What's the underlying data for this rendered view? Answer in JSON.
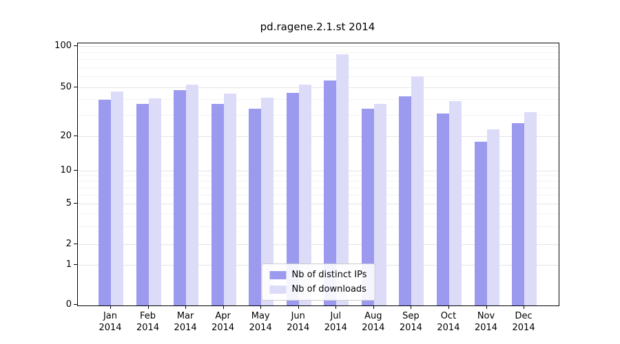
{
  "title": "pd.ragene.2.1.st 2014",
  "chart_data": {
    "type": "bar",
    "categories": [
      "Jan",
      "Feb",
      "Mar",
      "Apr",
      "May",
      "Jun",
      "Jul",
      "Aug",
      "Sep",
      "Oct",
      "Nov",
      "Dec"
    ],
    "category_year": "2014",
    "series": [
      {
        "name": "Nb of distinct IPs",
        "color": "#9b9aee",
        "values": [
          40,
          37,
          48,
          37,
          34,
          46,
          57,
          34,
          43,
          31,
          18,
          26
        ]
      },
      {
        "name": "Nb of downloads",
        "color": "#dcdbf8",
        "values": [
          47,
          41,
          53,
          45,
          42,
          53,
          88,
          37,
          61,
          39,
          23,
          32
        ]
      }
    ],
    "yticks": [
      0,
      1,
      2,
      5,
      10,
      20,
      50,
      100
    ],
    "minor_gridline_values": [
      3,
      4,
      6,
      7,
      8,
      9,
      30,
      40,
      60,
      70,
      80,
      90
    ],
    "ylim": [
      0,
      100
    ],
    "yscale": "symlog",
    "xlabel": "",
    "ylabel": "",
    "grid": true,
    "legend_position": "lower center",
    "colors": {
      "background": "#ffffff",
      "axis": "#000000",
      "major_grid": "#e4e4e4",
      "minor_grid": "#f3f3f3",
      "legend_border": "#cccccc"
    }
  }
}
